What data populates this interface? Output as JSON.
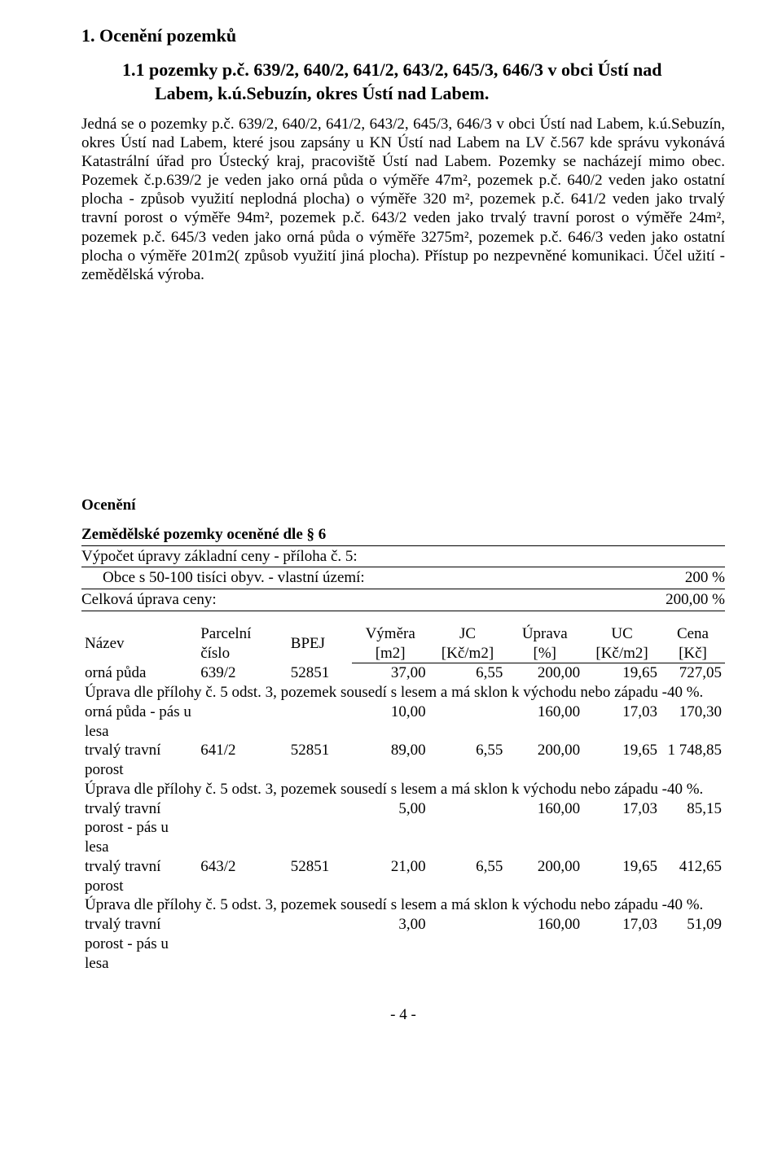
{
  "heading1": "1. Ocenění pozemků",
  "heading2_line1": "1.1 pozemky p.č. 639/2, 640/2, 641/2, 643/2, 645/3, 646/3   v obci   Ústí nad",
  "heading2_line2": "Labem, k.ú.Sebuzín, okres Ústí nad Labem.",
  "paragraph": "Jedná se o   pozemky p.č. 639/2, 640/2, 641/2, 643/2, 645/3, 646/3   v obci   Ústí nad Labem, k.ú.Sebuzín, okres Ústí nad Labem, které jsou zapsány u KN Ústí nad Labem na LV č.567 kde správu vykonává Katastrální úřad pro Ústecký   kraj, pracoviště Ústí nad Labem. Pozemky se nacházejí mimo obec. Pozemek č.p.639/2 je veden jako orná půda o výměře 47m², pozemek p.č. 640/2 veden jako ostatní plocha - způsob využití neplodná plocha) o výměře 320 m², pozemek   p.č. 641/2 veden jako trvalý travní porost o výměře 94m², pozemek p.č. 643/2 veden jako trvalý travní porost o výměře 24m², pozemek p.č. 645/3 veden jako orná půda o výměře 3275m², pozemek p.č. 646/3 veden jako ostatní plocha o výměře 201m2( způsob využití jiná plocha). Přístup po nezpevněné komunikaci.   Účel užití - zemědělská výroba.",
  "oceneni_label": "Ocenění",
  "sub_heading": "Zemědělské pozemky oceněné dle § 6",
  "calc_label": "Výpočet úpravy základní ceny - příloha č. 5:",
  "obce_row": {
    "l": "Obce s 50-100 tisíci obyv. - vlastní území:",
    "r": "200 %"
  },
  "celk_row": {
    "l": "Celková úprava ceny:",
    "r": "200,00 %"
  },
  "thead": {
    "nazev": "Název",
    "parc": "Parcelní číslo",
    "bpej": "BPEJ",
    "vym1": "Výměra",
    "vym2": "[m2]",
    "jc1": "JC",
    "jc2": "[Kč/m2]",
    "upr1": "Úprava",
    "upr2": "[%]",
    "uc1": "UC",
    "uc2": "[Kč/m2]",
    "cena1": "Cena",
    "cena2": "[Kč]"
  },
  "rows": [
    {
      "n": "orná půda",
      "p": "639/2",
      "b": "52851",
      "v": "37,00",
      "j": "6,55",
      "u": "200,00",
      "uc": "19,65",
      "c": "727,05"
    },
    {
      "note": "Úprava dle přílohy č. 5 odst. 3, pozemek sousedí s lesem a má sklon k východu nebo západu -40 %."
    },
    {
      "n": "orná půda - pás u lesa",
      "p": "",
      "b": "",
      "v": "10,00",
      "j": "",
      "u": "160,00",
      "uc": "17,03",
      "c": "170,30"
    },
    {
      "n": "trvalý travní porost",
      "p": "641/2",
      "b": "52851",
      "v": "89,00",
      "j": "6,55",
      "u": "200,00",
      "uc": "19,65",
      "c": "1 748,85"
    },
    {
      "note": "Úprava dle přílohy č. 5 odst. 3, pozemek sousedí s lesem a má sklon k východu nebo západu -40 %."
    },
    {
      "n": "trvalý travní porost - pás u lesa",
      "p": "",
      "b": "",
      "v": "5,00",
      "j": "",
      "u": "160,00",
      "uc": "17,03",
      "c": "85,15"
    },
    {
      "n": "trvalý travní porost",
      "p": "643/2",
      "b": "52851",
      "v": "21,00",
      "j": "6,55",
      "u": "200,00",
      "uc": "19,65",
      "c": "412,65"
    },
    {
      "note": "Úprava dle přílohy č. 5 odst. 3, pozemek sousedí s lesem a má sklon k východu nebo západu -40 %."
    },
    {
      "n": "trvalý travní porost - pás u lesa",
      "p": "",
      "b": "",
      "v": "3,00",
      "j": "",
      "u": "160,00",
      "uc": "17,03",
      "c": "51,09"
    }
  ],
  "page_num": "- 4 -"
}
